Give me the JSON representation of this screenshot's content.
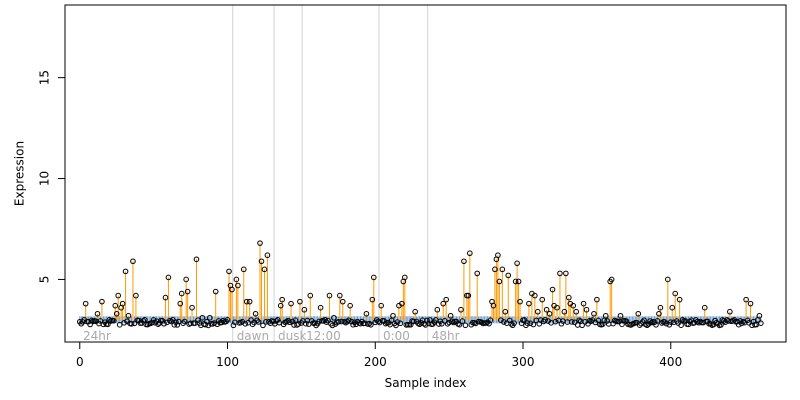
{
  "chart_data": {
    "type": "scatter",
    "xlabel": "Sample index",
    "ylabel": "Expression",
    "xlim": [
      -10,
      478
    ],
    "ylim": [
      1.9,
      18.6
    ],
    "x_ticks": [
      0,
      100,
      200,
      300,
      400
    ],
    "y_ticks": [
      5,
      10,
      15
    ],
    "n_samples": 462,
    "baseline": 3.0,
    "groups": [
      {
        "label": "24hr",
        "start": 0
      },
      {
        "label": "dawn",
        "start": 104
      },
      {
        "label": "dusk",
        "start": 132
      },
      {
        "label": "12:00",
        "start": 151
      },
      {
        "label": "0:00",
        "start": 203
      },
      {
        "label": "48hr",
        "start": 236
      }
    ],
    "points": [
      [
        4,
        3.8
      ],
      [
        12,
        3.3
      ],
      [
        15,
        3.9
      ],
      [
        20,
        3.0
      ],
      [
        24,
        3.7
      ],
      [
        25,
        3.3
      ],
      [
        26,
        4.2
      ],
      [
        28,
        3.6
      ],
      [
        29,
        3.8
      ],
      [
        31,
        5.4
      ],
      [
        33,
        3.2
      ],
      [
        36,
        5.9
      ],
      [
        38,
        4.2
      ],
      [
        44,
        3.0
      ],
      [
        58,
        4.1
      ],
      [
        60,
        5.1
      ],
      [
        63,
        3.0
      ],
      [
        68,
        3.8
      ],
      [
        69,
        4.3
      ],
      [
        72,
        5.0
      ],
      [
        73,
        4.4
      ],
      [
        76,
        3.6
      ],
      [
        79,
        6.0
      ],
      [
        83,
        3.1
      ],
      [
        88,
        3.1
      ],
      [
        92,
        4.4
      ],
      [
        100,
        3.0
      ],
      [
        101,
        5.4
      ],
      [
        102,
        4.7
      ],
      [
        103,
        4.5
      ],
      [
        106,
        5.0
      ],
      [
        107,
        4.7
      ],
      [
        111,
        5.5
      ],
      [
        113,
        3.9
      ],
      [
        115,
        3.9
      ],
      [
        119,
        3.3
      ],
      [
        122,
        6.8
      ],
      [
        123,
        5.9
      ],
      [
        125,
        5.5
      ],
      [
        127,
        6.2
      ],
      [
        136,
        3.7
      ],
      [
        137,
        4.0
      ],
      [
        143,
        3.8
      ],
      [
        149,
        3.9
      ],
      [
        152,
        3.5
      ],
      [
        156,
        4.2
      ],
      [
        163,
        3.6
      ],
      [
        169,
        4.2
      ],
      [
        172,
        3.1
      ],
      [
        176,
        4.2
      ],
      [
        178,
        3.9
      ],
      [
        183,
        3.7
      ],
      [
        194,
        3.3
      ],
      [
        198,
        4.0
      ],
      [
        199,
        5.1
      ],
      [
        204,
        3.7
      ],
      [
        212,
        3.2
      ],
      [
        216,
        3.7
      ],
      [
        218,
        3.8
      ],
      [
        219,
        4.9
      ],
      [
        220,
        5.1
      ],
      [
        227,
        3.4
      ],
      [
        242,
        3.5
      ],
      [
        246,
        3.8
      ],
      [
        248,
        4.0
      ],
      [
        251,
        3.2
      ],
      [
        258,
        3.5
      ],
      [
        260,
        5.9
      ],
      [
        262,
        4.2
      ],
      [
        263,
        4.2
      ],
      [
        264,
        6.3
      ],
      [
        269,
        5.3
      ],
      [
        279,
        3.9
      ],
      [
        280,
        3.7
      ],
      [
        281,
        5.5
      ],
      [
        282,
        6.0
      ],
      [
        283,
        6.2
      ],
      [
        284,
        4.9
      ],
      [
        286,
        5.5
      ],
      [
        288,
        3.4
      ],
      [
        290,
        5.2
      ],
      [
        295,
        4.9
      ],
      [
        296,
        5.8
      ],
      [
        297,
        4.9
      ],
      [
        298,
        3.9
      ],
      [
        304,
        3.8
      ],
      [
        306,
        4.3
      ],
      [
        308,
        4.2
      ],
      [
        310,
        3.4
      ],
      [
        313,
        4.0
      ],
      [
        316,
        3.5
      ],
      [
        318,
        3.3
      ],
      [
        320,
        4.5
      ],
      [
        321,
        3.7
      ],
      [
        323,
        3.6
      ],
      [
        325,
        5.3
      ],
      [
        328,
        3.4
      ],
      [
        329,
        5.3
      ],
      [
        331,
        4.1
      ],
      [
        332,
        3.8
      ],
      [
        334,
        3.7
      ],
      [
        336,
        3.4
      ],
      [
        341,
        3.8
      ],
      [
        343,
        3.5
      ],
      [
        348,
        3.3
      ],
      [
        350,
        4.0
      ],
      [
        356,
        3.2
      ],
      [
        359,
        4.9
      ],
      [
        360,
        5.0
      ],
      [
        366,
        3.2
      ],
      [
        378,
        3.3
      ],
      [
        392,
        3.3
      ],
      [
        393,
        3.6
      ],
      [
        398,
        5.0
      ],
      [
        401,
        3.6
      ],
      [
        403,
        4.3
      ],
      [
        406,
        4.0
      ],
      [
        423,
        3.6
      ],
      [
        440,
        3.4
      ],
      [
        451,
        4.0
      ],
      [
        454,
        3.8
      ],
      [
        460,
        3.2
      ]
    ],
    "colors": {
      "stem": "#ff9900",
      "point_stroke": "#000000",
      "baseline_mark": "#6699cc",
      "separator": "#d3d3d3",
      "group_label": "#aaaaaa"
    }
  }
}
